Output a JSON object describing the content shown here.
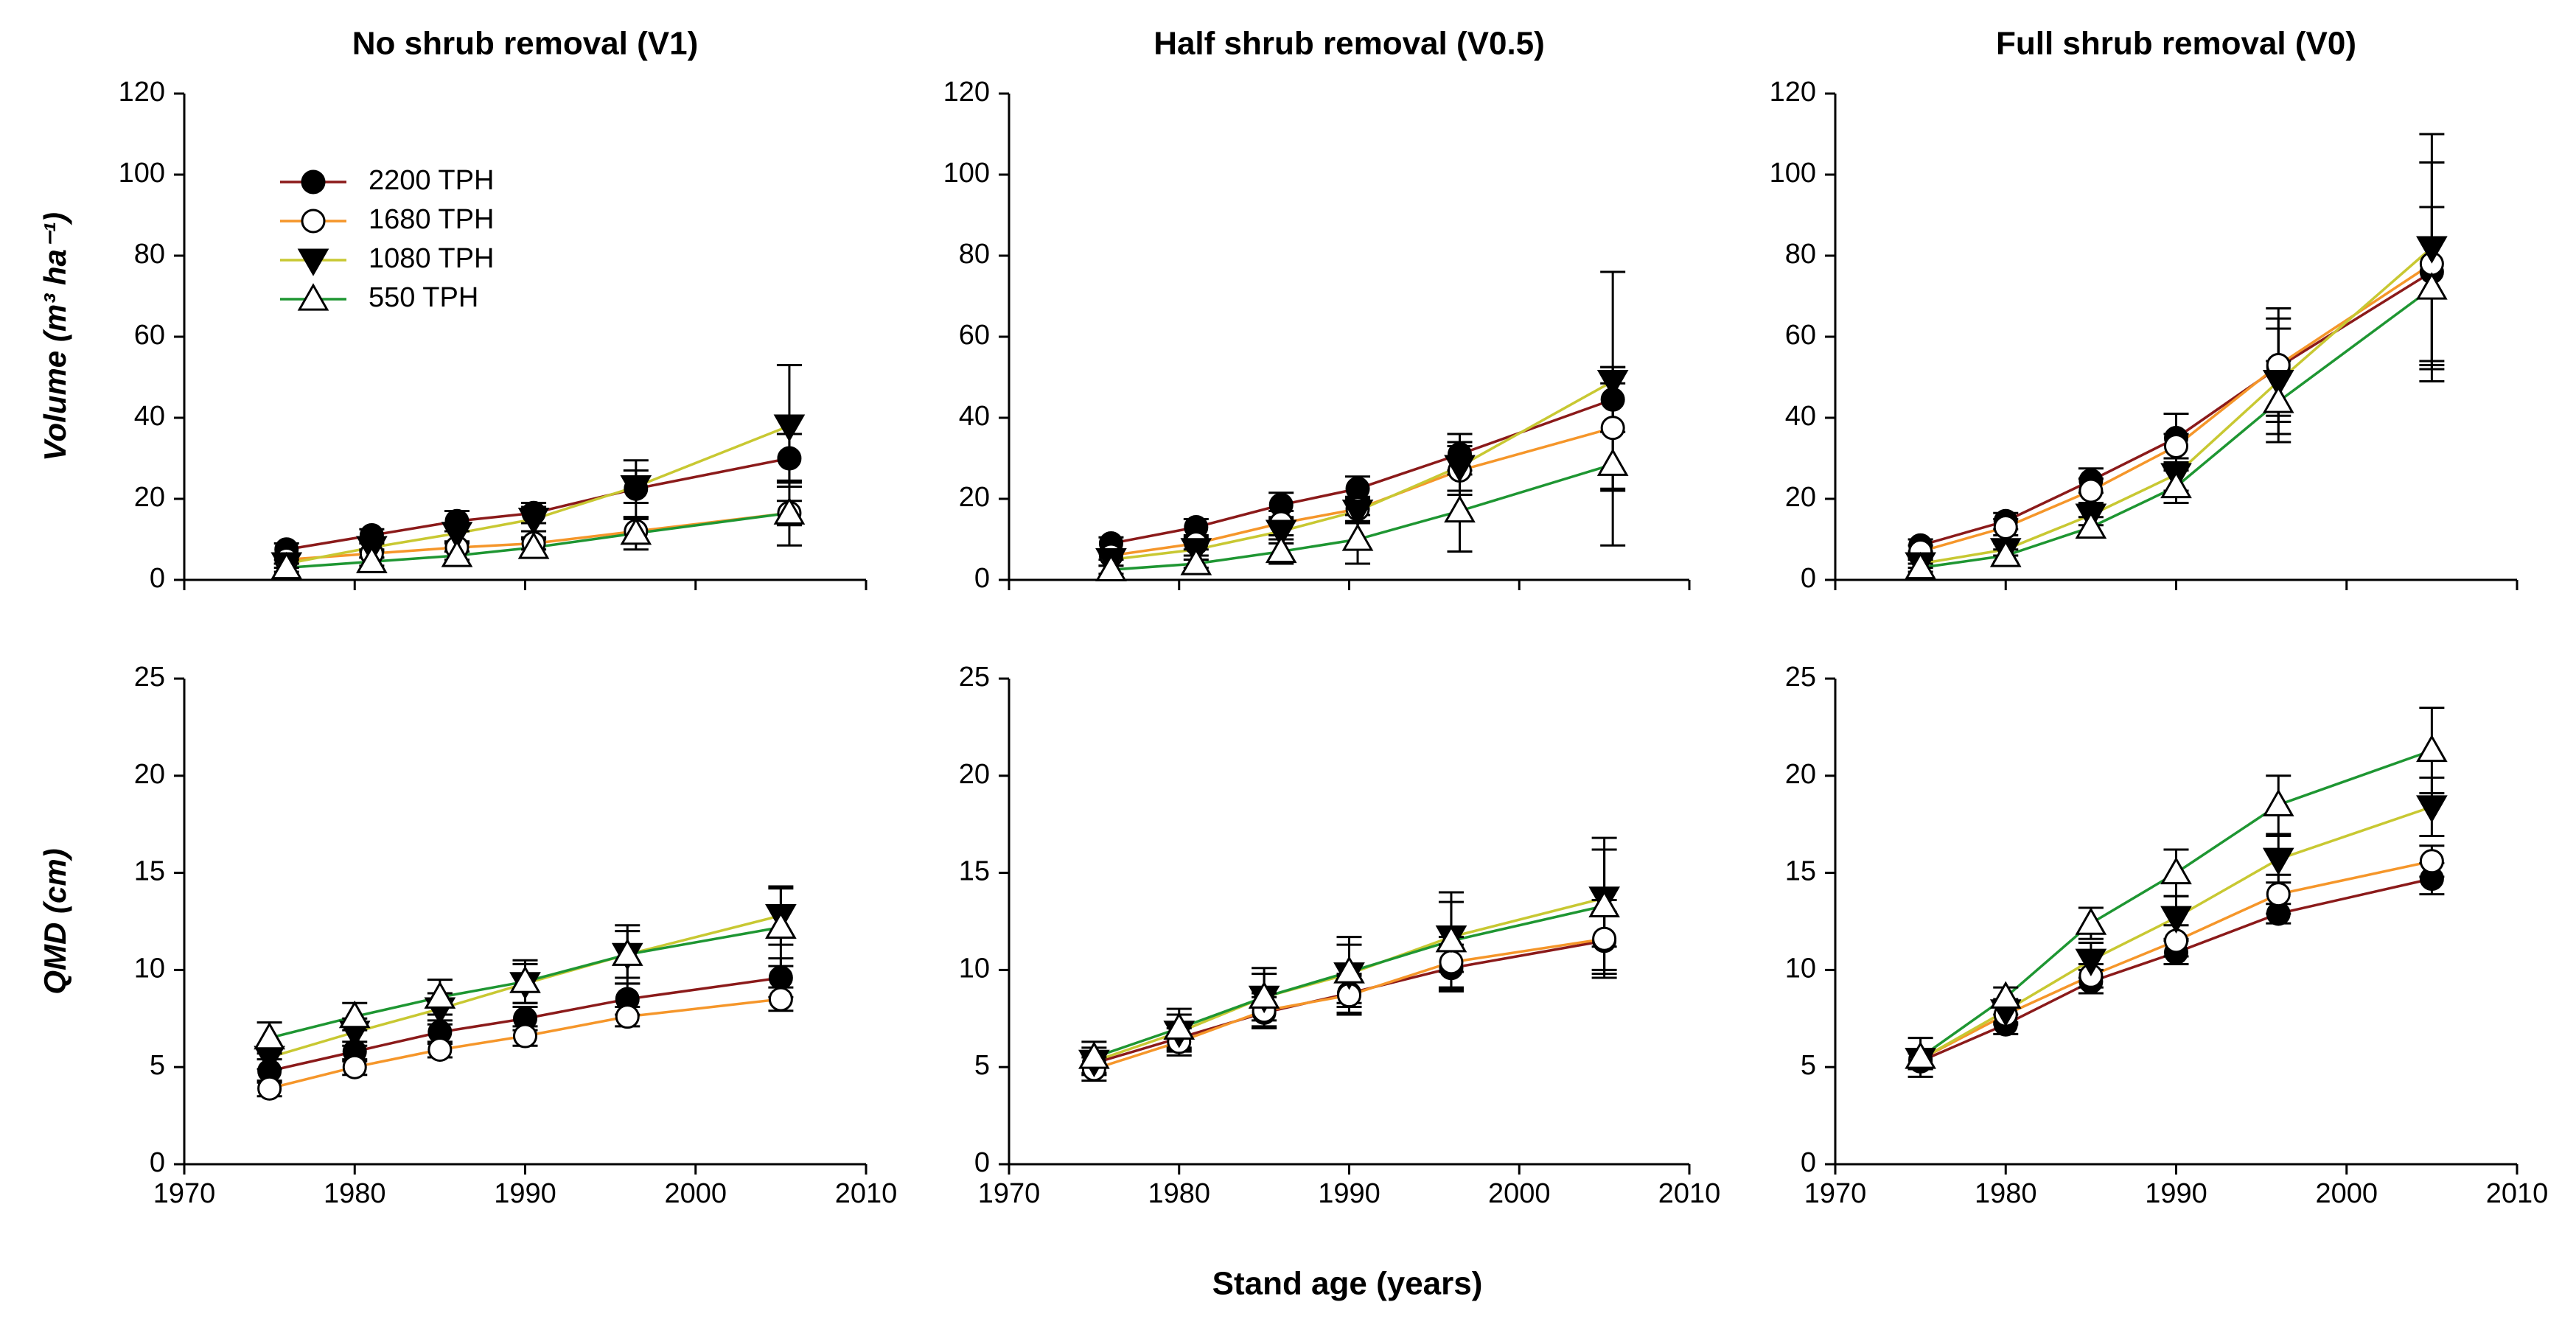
{
  "figure": {
    "xlabel": "Stand age (years)"
  },
  "chart_data": [
    {
      "type": "line",
      "title": "No shrub removal (V1)",
      "ylabel": "Volume (m³ ha⁻¹)",
      "legend": "upper left",
      "x": [
        1976,
        1981,
        1986,
        1990.5,
        1996.5,
        2005.5
      ],
      "xlim": [
        1970,
        2010
      ],
      "xticks": [
        1970,
        1980,
        1990,
        2000,
        2010
      ],
      "ylim": [
        0,
        120
      ],
      "yticks": [
        0,
        20,
        40,
        60,
        80,
        100,
        120
      ],
      "series": [
        {
          "name": "2200 TPH",
          "color": "#8b1a1a",
          "marker": "circle-filled",
          "values": [
            7.5,
            11,
            14.5,
            16.5,
            22.5,
            30
          ],
          "errors": [
            1.5,
            1.5,
            2.5,
            2.5,
            7,
            6
          ]
        },
        {
          "name": "1680 TPH",
          "color": "#f5962a",
          "marker": "circle-open",
          "values": [
            5,
            6.5,
            8,
            9,
            12,
            16.5
          ],
          "errors": [
            1,
            1,
            1,
            1.5,
            3,
            3
          ]
        },
        {
          "name": "1080 TPH",
          "color": "#c8c832",
          "marker": "triangle-down-filled",
          "values": [
            4,
            8,
            11.5,
            15,
            23,
            38
          ],
          "errors": [
            1,
            1,
            2,
            3,
            4,
            15
          ]
        },
        {
          "name": "550 TPH",
          "color": "#1e9632",
          "marker": "triangle-up-open",
          "values": [
            3,
            4.5,
            6,
            8,
            11.5,
            16.5
          ],
          "errors": [
            1,
            1,
            1,
            2,
            4,
            8
          ]
        }
      ]
    },
    {
      "type": "line",
      "title": "Half shrub removal (V0.5)",
      "x": [
        1976,
        1981,
        1986,
        1990.5,
        1996.5,
        2005.5
      ],
      "xlim": [
        1970,
        2010
      ],
      "xticks": [
        1970,
        1980,
        1990,
        2000,
        2010
      ],
      "ylim": [
        0,
        120
      ],
      "yticks": [
        0,
        20,
        40,
        60,
        80,
        100,
        120
      ],
      "series": [
        {
          "color": "#8b1a1a",
          "marker": "circle-filled",
          "values": [
            9,
            13,
            18.5,
            22.5,
            31,
            44.5
          ],
          "errors": [
            1.5,
            2,
            3,
            3,
            5,
            8
          ]
        },
        {
          "color": "#f5962a",
          "marker": "circle-open",
          "values": [
            6,
            9,
            14,
            17.5,
            27,
            37.5
          ],
          "errors": [
            1,
            1.5,
            3,
            3,
            6,
            15
          ]
        },
        {
          "color": "#c8c832",
          "marker": "triangle-down-filled",
          "values": [
            5,
            7.5,
            12,
            17,
            28,
            49
          ],
          "errors": [
            1.5,
            1.5,
            3,
            3,
            6,
            27
          ]
        },
        {
          "color": "#1e9632",
          "marker": "triangle-up-open",
          "values": [
            2.5,
            4,
            7,
            10,
            17,
            28.5
          ],
          "errors": [
            1,
            1,
            3,
            6,
            10,
            20
          ]
        }
      ]
    },
    {
      "type": "line",
      "title": "Full shrub removal (V0)",
      "x": [
        1975,
        1980,
        1985,
        1990,
        1996,
        2005
      ],
      "xlim": [
        1970,
        2010
      ],
      "xticks": [
        1970,
        1980,
        1990,
        2000,
        2010
      ],
      "ylim": [
        0,
        120
      ],
      "yticks": [
        0,
        20,
        40,
        60,
        80,
        100,
        120
      ],
      "series": [
        {
          "color": "#8b1a1a",
          "marker": "circle-filled",
          "values": [
            8.5,
            14.5,
            24.5,
            35,
            52.5,
            76
          ],
          "errors": [
            1.5,
            2,
            3,
            6,
            12,
            27
          ]
        },
        {
          "color": "#f5962a",
          "marker": "circle-open",
          "values": [
            7,
            13,
            22,
            33,
            53,
            78
          ],
          "errors": [
            1.5,
            2,
            3,
            3,
            14,
            25
          ]
        },
        {
          "color": "#c8c832",
          "marker": "triangle-down-filled",
          "values": [
            4,
            7.5,
            16,
            26,
            49,
            82
          ],
          "errors": [
            1,
            1.5,
            2.5,
            4,
            13,
            28
          ]
        },
        {
          "color": "#1e9632",
          "marker": "triangle-up-open",
          "values": [
            3,
            6,
            13,
            23,
            44,
            72
          ],
          "errors": [
            1,
            1.5,
            2.5,
            4,
            10,
            20
          ]
        }
      ]
    },
    {
      "type": "line",
      "ylabel": "QMD (cm)",
      "x": [
        1975,
        1980,
        1985,
        1990,
        1996,
        2005
      ],
      "xlim": [
        1970,
        2010
      ],
      "xticks": [
        1970,
        1980,
        1990,
        2000,
        2010
      ],
      "ylim": [
        0,
        25
      ],
      "yticks": [
        0,
        5,
        10,
        15,
        20,
        25
      ],
      "series": [
        {
          "color": "#8b1a1a",
          "marker": "circle-filled",
          "values": [
            4.8,
            5.8,
            6.8,
            7.5,
            8.5,
            9.6
          ],
          "errors": [
            0.6,
            0.5,
            0.6,
            0.6,
            0.8,
            1
          ]
        },
        {
          "color": "#f5962a",
          "marker": "circle-open",
          "values": [
            3.9,
            5,
            5.9,
            6.6,
            7.6,
            8.5
          ],
          "errors": [
            0.4,
            0.4,
            0.4,
            0.5,
            0.5,
            0.6
          ]
        },
        {
          "color": "#c8c832",
          "marker": "triangle-down-filled",
          "values": [
            5.5,
            6.8,
            8,
            9.3,
            10.8,
            12.8
          ],
          "errors": [
            0.6,
            0.7,
            0.8,
            1,
            1.2,
            1.5
          ]
        },
        {
          "color": "#1e9632",
          "marker": "triangle-up-open",
          "values": [
            6.5,
            7.6,
            8.6,
            9.4,
            10.8,
            12.2
          ],
          "errors": [
            0.8,
            0.7,
            0.9,
            1.1,
            1.5,
            2
          ]
        }
      ]
    },
    {
      "type": "line",
      "x": [
        1975,
        1980,
        1985,
        1990,
        1996,
        2005
      ],
      "xlim": [
        1970,
        2010
      ],
      "xticks": [
        1970,
        1980,
        1990,
        2000,
        2010
      ],
      "ylim": [
        0,
        25
      ],
      "yticks": [
        0,
        5,
        10,
        15,
        20,
        25
      ],
      "series": [
        {
          "color": "#8b1a1a",
          "marker": "circle-filled",
          "values": [
            5.2,
            6.5,
            7.8,
            8.8,
            10.1,
            11.5
          ],
          "errors": [
            0.6,
            0.7,
            0.8,
            1,
            1.2,
            1.5
          ]
        },
        {
          "color": "#f5962a",
          "marker": "circle-open",
          "values": [
            4.9,
            6.3,
            7.9,
            8.7,
            10.4,
            11.6
          ],
          "errors": [
            0.6,
            0.7,
            0.9,
            1,
            1.3,
            2
          ]
        },
        {
          "color": "#c8c832",
          "marker": "triangle-down-filled",
          "values": [
            5.3,
            6.8,
            8.6,
            9.8,
            11.7,
            13.7
          ],
          "errors": [
            0.7,
            0.9,
            1.2,
            1.5,
            1.8,
            2.5
          ]
        },
        {
          "color": "#1e9632",
          "marker": "triangle-up-open",
          "values": [
            5.5,
            7,
            8.6,
            9.9,
            11.5,
            13.3
          ],
          "errors": [
            0.8,
            1,
            1.5,
            1.8,
            2.5,
            3.5
          ]
        }
      ]
    },
    {
      "type": "line",
      "x": [
        1975,
        1980,
        1985,
        1990,
        1996,
        2005
      ],
      "xlim": [
        1970,
        2010
      ],
      "xticks": [
        1970,
        1980,
        1990,
        2000,
        2010
      ],
      "ylim": [
        0,
        25
      ],
      "yticks": [
        0,
        5,
        10,
        15,
        20,
        25
      ],
      "series": [
        {
          "color": "#8b1a1a",
          "marker": "circle-filled",
          "values": [
            5.3,
            7.2,
            9.4,
            10.9,
            12.9,
            14.7
          ],
          "errors": [
            0.4,
            0.5,
            0.6,
            0.6,
            0.5,
            0.8
          ]
        },
        {
          "color": "#f5962a",
          "marker": "circle-open",
          "values": [
            5.4,
            7.7,
            9.7,
            11.5,
            13.9,
            15.6
          ],
          "errors": [
            0.4,
            0.5,
            0.6,
            0.8,
            1,
            0.8
          ]
        },
        {
          "color": "#c8c832",
          "marker": "triangle-down-filled",
          "values": [
            5.4,
            7.9,
            10.5,
            12.7,
            15.7,
            18.4
          ],
          "errors": [
            0.5,
            0.6,
            0.9,
            1.1,
            1.2,
            1.5
          ]
        },
        {
          "color": "#1e9632",
          "marker": "triangle-up-open",
          "values": [
            5.5,
            8.6,
            12.4,
            15,
            18.5,
            21.3
          ],
          "errors": [
            1,
            0.5,
            0.8,
            1.2,
            1.5,
            2.2
          ]
        }
      ]
    }
  ]
}
